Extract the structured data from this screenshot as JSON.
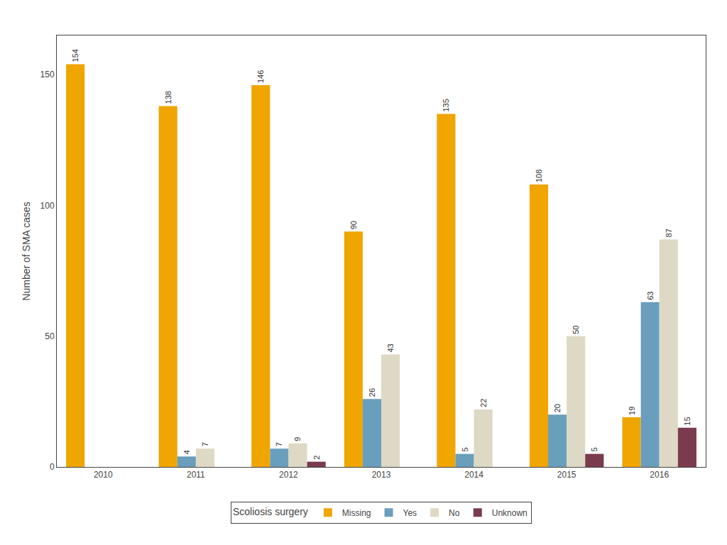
{
  "chart_data": {
    "type": "bar",
    "categories": [
      "2010",
      "2011",
      "2012",
      "2013",
      "2014",
      "2015",
      "2016"
    ],
    "series": [
      {
        "name": "Missing",
        "color": "#F0A500",
        "values": [
          154,
          138,
          146,
          90,
          135,
          108,
          19
        ]
      },
      {
        "name": "Yes",
        "color": "#6A9EBD",
        "values": [
          0,
          4,
          7,
          26,
          5,
          20,
          63
        ]
      },
      {
        "name": "No",
        "color": "#DDD9C4",
        "values": [
          0,
          7,
          9,
          43,
          22,
          50,
          87
        ]
      },
      {
        "name": "Unknown",
        "color": "#7B3B4E",
        "values": [
          0,
          0,
          2,
          0,
          0,
          5,
          15
        ]
      }
    ],
    "ylabel": "Number of SMA cases",
    "legend_title": "Scoliosis surgery",
    "ylim": [
      0,
      165
    ],
    "yticks": [
      0,
      50,
      100,
      150
    ],
    "grid": false,
    "legend": "bottom",
    "data_labels": true
  }
}
